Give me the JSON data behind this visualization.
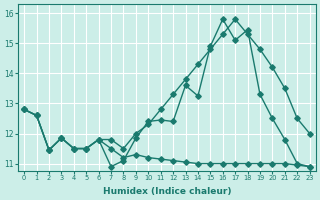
{
  "xlabel": "Humidex (Indice chaleur)",
  "bg_color": "#cceee8",
  "grid_color": "#ffffff",
  "line_color": "#1a7a6e",
  "xlim": [
    -0.5,
    23.5
  ],
  "ylim": [
    10.75,
    16.3
  ],
  "xticks": [
    0,
    1,
    2,
    3,
    4,
    5,
    6,
    7,
    8,
    9,
    10,
    11,
    12,
    13,
    14,
    15,
    16,
    17,
    18,
    19,
    20,
    21,
    22,
    23
  ],
  "yticks": [
    11,
    12,
    13,
    14,
    15,
    16
  ],
  "line1_x": [
    0,
    1,
    2,
    3,
    4,
    5,
    6,
    7,
    8,
    9,
    10,
    11,
    12,
    13,
    14,
    15,
    16,
    17,
    18,
    19,
    20,
    21,
    22,
    23
  ],
  "line1_y": [
    12.8,
    12.6,
    11.45,
    11.85,
    11.5,
    11.5,
    11.8,
    10.9,
    11.1,
    11.85,
    12.4,
    12.45,
    12.4,
    13.6,
    13.25,
    14.9,
    15.8,
    15.1,
    15.45,
    13.3,
    12.5,
    11.8,
    11.0,
    10.9
  ],
  "line2_x": [
    0,
    1,
    2,
    3,
    4,
    5,
    6,
    7,
    8,
    9,
    10,
    11,
    12,
    13,
    14,
    15,
    16,
    17,
    18,
    19,
    20,
    21,
    22,
    23
  ],
  "line2_y": [
    12.8,
    12.6,
    11.45,
    11.85,
    11.5,
    11.5,
    11.8,
    11.8,
    11.5,
    12.0,
    12.3,
    12.8,
    13.3,
    13.8,
    14.3,
    14.8,
    15.3,
    15.8,
    15.3,
    14.8,
    14.2,
    13.5,
    12.5,
    12.0
  ],
  "line3_x": [
    0,
    1,
    2,
    3,
    4,
    5,
    6,
    7,
    8,
    9,
    10,
    11,
    12,
    13,
    14,
    15,
    16,
    17,
    18,
    19,
    20,
    21,
    22,
    23
  ],
  "line3_y": [
    12.8,
    12.6,
    11.45,
    11.85,
    11.5,
    11.5,
    11.8,
    11.5,
    11.2,
    11.3,
    11.2,
    11.15,
    11.1,
    11.05,
    11.0,
    11.0,
    11.0,
    11.0,
    11.0,
    11.0,
    11.0,
    11.0,
    10.95,
    10.9
  ]
}
